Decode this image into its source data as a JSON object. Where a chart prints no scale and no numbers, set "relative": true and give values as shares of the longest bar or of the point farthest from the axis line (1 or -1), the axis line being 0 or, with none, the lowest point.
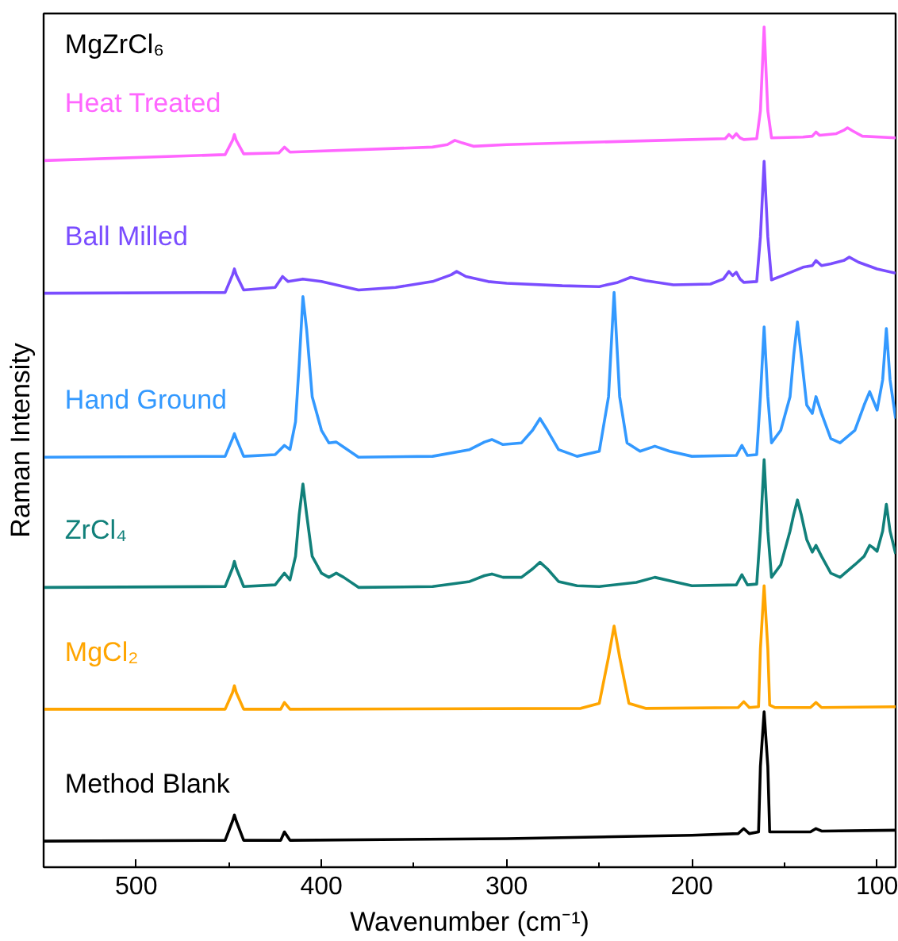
{
  "chart_data": {
    "type": "line",
    "xlabel": "Wavenumber (cm⁻¹)",
    "ylabel": "Raman Intensity",
    "relative": true,
    "tick_labels": "x",
    "grid": false,
    "marker": "none",
    "line_style": "solid",
    "xlim": [
      550,
      90
    ],
    "xticks": [
      500,
      {
        "value": 450,
        "label": null
      },
      400,
      {
        "value": 350,
        "label": null
      },
      300,
      {
        "value": 250,
        "label": null
      },
      200,
      {
        "value": 150,
        "label": null
      },
      100
    ],
    "annotations": [
      "MgZrCl₆"
    ],
    "series": [
      {
        "name": "Heat Treated",
        "color": "#ff66ff",
        "x": [
          550,
          452,
          448,
          447,
          446,
          442,
          423,
          420,
          417,
          340,
          332,
          328,
          324,
          318,
          300,
          200,
          182,
          180,
          178,
          176,
          174,
          172,
          165,
          163,
          161,
          159,
          157,
          140,
          135,
          133,
          131,
          122,
          118,
          116,
          113,
          108,
          90
        ],
        "values": [
          0.841,
          0.848,
          0.865,
          0.872,
          0.865,
          0.849,
          0.85,
          0.857,
          0.851,
          0.857,
          0.86,
          0.865,
          0.862,
          0.858,
          0.86,
          0.866,
          0.867,
          0.872,
          0.868,
          0.873,
          0.868,
          0.866,
          0.867,
          0.9,
          1.0,
          0.9,
          0.868,
          0.869,
          0.87,
          0.875,
          0.871,
          0.873,
          0.877,
          0.88,
          0.876,
          0.87,
          0.868
        ]
      },
      {
        "name": "Ball Milled",
        "color": "#7a4dff",
        "x": [
          550,
          452,
          448,
          447,
          446,
          442,
          425,
          421,
          418,
          410,
          400,
          380,
          360,
          340,
          330,
          327,
          322,
          310,
          300,
          270,
          250,
          240,
          233,
          225,
          210,
          190,
          183,
          180,
          178,
          176,
          174,
          172,
          165,
          163,
          161,
          159,
          157,
          150,
          140,
          135,
          133,
          130,
          125,
          118,
          115,
          110,
          100,
          90
        ],
        "values": [
          0.683,
          0.684,
          0.705,
          0.712,
          0.705,
          0.687,
          0.69,
          0.703,
          0.697,
          0.7,
          0.697,
          0.687,
          0.69,
          0.697,
          0.705,
          0.709,
          0.703,
          0.697,
          0.695,
          0.692,
          0.691,
          0.696,
          0.702,
          0.698,
          0.693,
          0.694,
          0.7,
          0.709,
          0.704,
          0.708,
          0.7,
          0.696,
          0.697,
          0.75,
          0.84,
          0.75,
          0.699,
          0.705,
          0.714,
          0.716,
          0.722,
          0.716,
          0.718,
          0.722,
          0.726,
          0.72,
          0.712,
          0.707
        ]
      },
      {
        "name": "Hand Ground",
        "color": "#3399ff",
        "x": [
          550,
          452,
          448,
          447,
          446,
          442,
          425,
          420,
          417,
          414,
          412,
          410,
          408,
          405,
          400,
          396,
          392,
          388,
          380,
          340,
          320,
          312,
          308,
          302,
          292,
          286,
          282,
          278,
          272,
          262,
          250,
          245,
          242,
          239,
          235,
          228,
          220,
          212,
          200,
          176,
          173,
          170,
          165,
          163,
          161,
          159,
          157,
          152,
          147,
          145,
          143,
          141,
          138,
          135,
          133,
          130,
          125,
          120,
          112,
          107,
          104,
          102,
          100,
          97,
          95,
          93,
          90
        ],
        "values": [
          0.488,
          0.489,
          0.51,
          0.516,
          0.51,
          0.489,
          0.491,
          0.502,
          0.497,
          0.53,
          0.6,
          0.679,
          0.64,
          0.56,
          0.52,
          0.505,
          0.506,
          0.5,
          0.488,
          0.489,
          0.497,
          0.506,
          0.509,
          0.503,
          0.505,
          0.52,
          0.534,
          0.52,
          0.497,
          0.489,
          0.495,
          0.56,
          0.684,
          0.56,
          0.505,
          0.495,
          0.501,
          0.495,
          0.489,
          0.49,
          0.502,
          0.49,
          0.491,
          0.56,
          0.643,
          0.56,
          0.505,
          0.52,
          0.56,
          0.61,
          0.649,
          0.61,
          0.55,
          0.54,
          0.56,
          0.54,
          0.51,
          0.505,
          0.52,
          0.55,
          0.566,
          0.555,
          0.544,
          0.58,
          0.641,
          0.58,
          0.534
        ]
      },
      {
        "name": "ZrCl₄",
        "color": "#11807a",
        "x": [
          550,
          452,
          448,
          447,
          446,
          442,
          425,
          420,
          417,
          414,
          412,
          410,
          408,
          405,
          400,
          396,
          392,
          388,
          380,
          340,
          320,
          312,
          308,
          302,
          292,
          286,
          282,
          278,
          272,
          262,
          250,
          230,
          220,
          210,
          200,
          176,
          173,
          170,
          165,
          163,
          161,
          159,
          157,
          152,
          147,
          145,
          143,
          141,
          138,
          135,
          133,
          130,
          125,
          120,
          112,
          107,
          104,
          102,
          100,
          97,
          95,
          93,
          90
        ],
        "values": [
          0.333,
          0.334,
          0.356,
          0.364,
          0.356,
          0.334,
          0.336,
          0.35,
          0.342,
          0.37,
          0.42,
          0.456,
          0.42,
          0.37,
          0.35,
          0.345,
          0.35,
          0.345,
          0.333,
          0.334,
          0.34,
          0.347,
          0.349,
          0.345,
          0.345,
          0.355,
          0.363,
          0.355,
          0.34,
          0.335,
          0.334,
          0.339,
          0.345,
          0.34,
          0.335,
          0.336,
          0.348,
          0.336,
          0.337,
          0.4,
          0.485,
          0.4,
          0.345,
          0.36,
          0.4,
          0.42,
          0.437,
          0.42,
          0.39,
          0.375,
          0.383,
          0.37,
          0.35,
          0.345,
          0.36,
          0.37,
          0.383,
          0.38,
          0.376,
          0.4,
          0.432,
          0.4,
          0.373
        ]
      },
      {
        "name": "MgCl₂",
        "color": "#ffa500",
        "x": [
          550,
          452,
          448,
          447,
          446,
          442,
          422,
          420,
          417,
          260,
          250,
          245,
          242,
          239,
          234,
          225,
          175,
          172,
          169,
          164,
          163,
          161,
          159,
          158,
          155,
          136,
          133,
          130,
          90
        ],
        "values": [
          0.188,
          0.188,
          0.208,
          0.216,
          0.208,
          0.188,
          0.188,
          0.196,
          0.188,
          0.189,
          0.195,
          0.25,
          0.287,
          0.25,
          0.195,
          0.189,
          0.19,
          0.197,
          0.19,
          0.191,
          0.26,
          0.335,
          0.26,
          0.193,
          0.19,
          0.19,
          0.196,
          0.19,
          0.191
        ]
      },
      {
        "name": "Method Blank",
        "color": "#000000",
        "x": [
          550,
          452,
          448,
          447,
          446,
          442,
          422,
          420,
          417,
          300,
          200,
          175,
          172,
          169,
          164,
          163,
          161,
          159,
          158,
          136,
          133,
          130,
          90
        ],
        "values": [
          0.031,
          0.032,
          0.055,
          0.062,
          0.055,
          0.032,
          0.032,
          0.042,
          0.032,
          0.034,
          0.038,
          0.04,
          0.046,
          0.04,
          0.042,
          0.12,
          0.185,
          0.12,
          0.042,
          0.042,
          0.046,
          0.043,
          0.044
        ]
      }
    ]
  }
}
